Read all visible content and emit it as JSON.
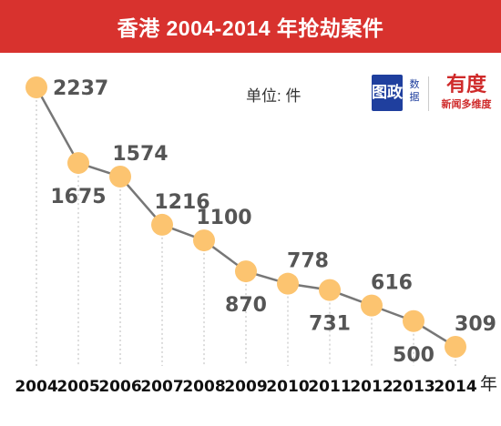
{
  "title": "香港 2004-2014 年抢劫案件",
  "unit_label": "单位: 件",
  "year_unit": "年",
  "logo": {
    "mark": "图政",
    "mark_sub": "数据",
    "brand": "有度",
    "brand_sub": "新闻多维度"
  },
  "colors": {
    "title_bar": "#d8322e",
    "line": "#777777",
    "marker": "#fcc470",
    "value_text": "#555555"
  },
  "chart_data": {
    "type": "line",
    "title": "香港 2004-2014 年抢劫案件",
    "xlabel": "年",
    "ylabel": "单位: 件",
    "x": [
      "2004",
      "2005",
      "2006",
      "2007",
      "2008",
      "2009",
      "2010",
      "2011",
      "2012",
      "2013",
      "2014"
    ],
    "series": [
      {
        "values": [
          2237,
          1675,
          1574,
          1216,
          1100,
          870,
          778,
          731,
          616,
          500,
          309
        ]
      }
    ],
    "label_positions": [
      "right",
      "below",
      "above",
      "above",
      "above",
      "below",
      "above",
      "below",
      "above",
      "below",
      "above"
    ],
    "ylim": [
      309,
      2237
    ],
    "grid": false,
    "legend": "none"
  }
}
